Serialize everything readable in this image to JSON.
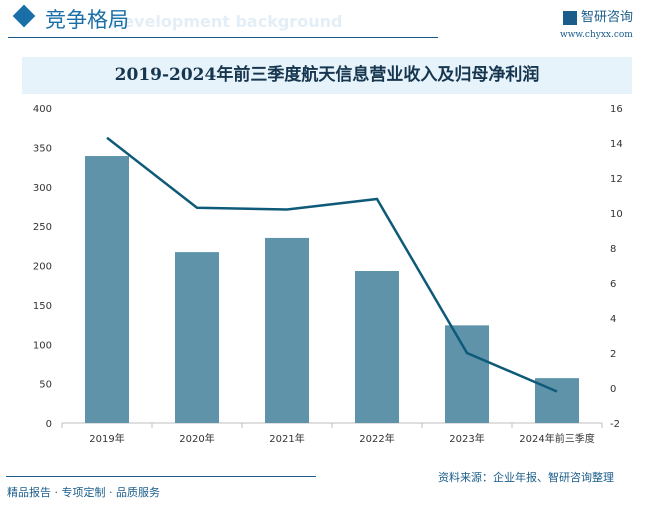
{
  "header": {
    "title": "竞争格局",
    "bg_text": "Development background",
    "logo_text": "智研咨询",
    "url": "www.chyxx.com"
  },
  "chart_data": {
    "type": "bar+line",
    "title": "2019-2024年前三季度航天信息营业收入及归母净利润",
    "categories": [
      "2019年",
      "2020年",
      "2021年",
      "2022年",
      "2023年",
      "2024年前三季度"
    ],
    "series": [
      {
        "type": "bar",
        "axis": "left",
        "values": [
          339,
          217,
          235,
          193,
          124,
          57
        ],
        "color": "#5f93aa"
      },
      {
        "type": "line",
        "axis": "right",
        "values": [
          14.3,
          10.3,
          10.2,
          10.8,
          2.0,
          -0.2
        ],
        "color": "#0e5a78"
      }
    ],
    "left_axis": {
      "range": [
        0,
        400
      ],
      "ticks": [
        "0",
        "50",
        "100",
        "150",
        "200",
        "250",
        "300",
        "350",
        "400"
      ]
    },
    "right_axis": {
      "range": [
        -2,
        16
      ],
      "ticks": [
        "-2",
        "0",
        "2",
        "4",
        "6",
        "8",
        "10",
        "12",
        "14",
        "16"
      ]
    },
    "grid": false
  },
  "footer": {
    "left": "精品报告 · 专项定制 · 品质服务",
    "source": "资料来源：企业年报、智研咨询整理"
  }
}
